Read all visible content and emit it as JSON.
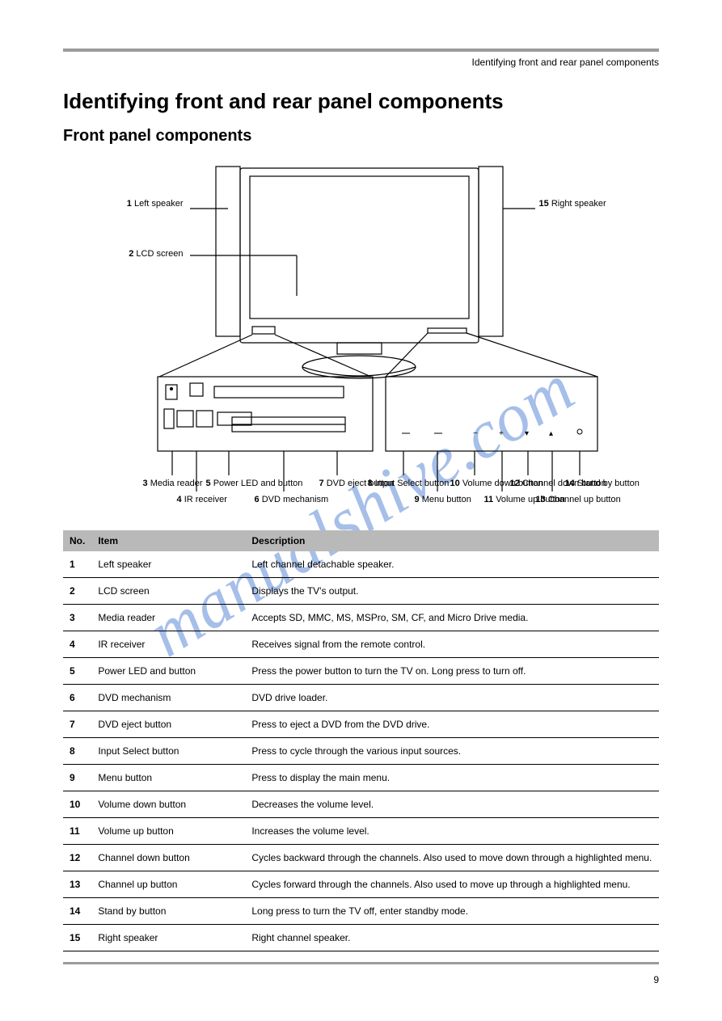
{
  "breadcrumb": "Identifying front and rear panel components",
  "title": "Identifying front and rear panel components",
  "subtitle": "Front panel components",
  "watermark": "manualshive.com",
  "page_number": "9",
  "diagram": {
    "callouts": {
      "c1": {
        "num": "1",
        "label": "Left speaker"
      },
      "c2": {
        "num": "2",
        "label": "LCD screen"
      },
      "c15": {
        "num": "15",
        "label": "Right speaker"
      },
      "c3": {
        "num": "3",
        "label": "Media reader"
      },
      "c4": {
        "num": "4",
        "label": "IR receiver"
      },
      "c5": {
        "num": "5",
        "label": "Power LED and\nbutton"
      },
      "c6": {
        "num": "6",
        "label": "DVD mechanism"
      },
      "c7": {
        "num": "7",
        "label": "DVD eject\nbutton"
      },
      "c8": {
        "num": "8",
        "label": "Input Select button"
      },
      "c9": {
        "num": "9",
        "label": "Menu button"
      },
      "c10": {
        "num": "10",
        "label": "Volume down\nbutton"
      },
      "c11": {
        "num": "11",
        "label": "Volume up\nbutton"
      },
      "c12": {
        "num": "12",
        "label": "Channel down\nbutton"
      },
      "c13": {
        "num": "13",
        "label": "Channel up\nbutton"
      },
      "c14": {
        "num": "14",
        "label": "Stand by\nbutton"
      }
    }
  },
  "table": {
    "headers": [
      "No.",
      "Item",
      "Description"
    ],
    "rows": [
      [
        "1",
        "Left speaker",
        "Left channel detachable speaker."
      ],
      [
        "2",
        "LCD screen",
        "Displays the TV's output."
      ],
      [
        "3",
        "Media reader",
        "Accepts SD, MMC, MS, MSPro, SM, CF, and Micro Drive media."
      ],
      [
        "4",
        "IR receiver",
        "Receives signal from the remote control."
      ],
      [
        "5",
        "Power LED and button",
        "Press the power button to turn the TV on. Long press to turn off."
      ],
      [
        "6",
        "DVD mechanism",
        "DVD drive loader."
      ],
      [
        "7",
        "DVD eject button",
        "Press to eject a DVD from the DVD drive."
      ],
      [
        "8",
        "Input Select button",
        "Press to cycle through the various input sources."
      ],
      [
        "9",
        "Menu button",
        "Press to display the main menu."
      ],
      [
        "10",
        "Volume down button",
        "Decreases the volume level."
      ],
      [
        "11",
        "Volume up button",
        "Increases the volume level."
      ],
      [
        "12",
        "Channel down button",
        "Cycles backward through the channels. Also used to move down through a highlighted menu."
      ],
      [
        "13",
        "Channel up button",
        "Cycles forward through the channels. Also used to move up through a highlighted menu."
      ],
      [
        "14",
        "Stand by button",
        "Long press to turn the TV off, enter standby mode."
      ],
      [
        "15",
        "Right speaker",
        "Right channel speaker."
      ]
    ]
  },
  "colors": {
    "rule": "#9b9b9b",
    "header_bg": "#b9b9b9",
    "watermark": "#5e8bd8",
    "line": "#000000"
  }
}
